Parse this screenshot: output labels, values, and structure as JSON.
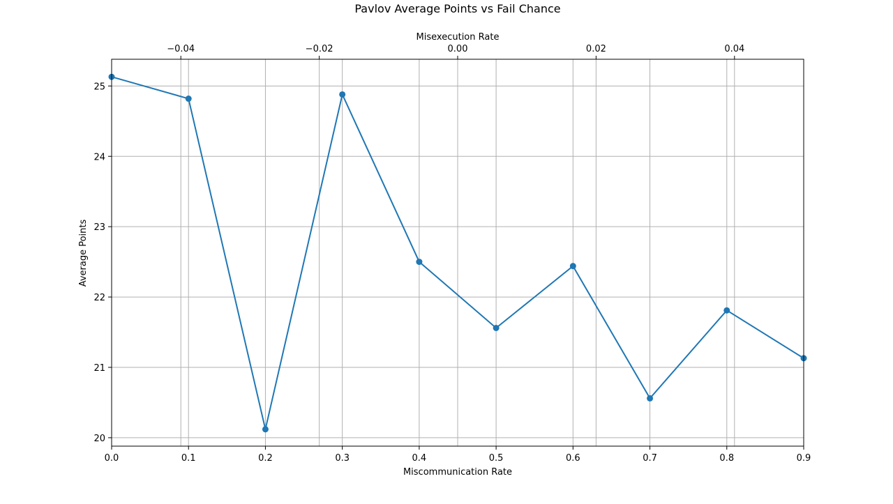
{
  "chart_data": {
    "type": "line",
    "title": "Pavlov Average Points vs Fail Chance",
    "xlabel": "Miscommunication Rate",
    "ylabel": "Average Points",
    "x2label": "Misexecution Rate",
    "xlim": [
      0,
      0.9
    ],
    "ylim": [
      19.88,
      25.38
    ],
    "x2lim": [
      -0.05,
      0.05
    ],
    "grid": true,
    "x_ticks": [
      "0.0",
      "0.1",
      "0.2",
      "0.3",
      "0.4",
      "0.5",
      "0.6",
      "0.7",
      "0.8",
      "0.9"
    ],
    "y_ticks": [
      "20",
      "21",
      "22",
      "23",
      "24",
      "25"
    ],
    "x2_ticks": [
      "−0.04",
      "−0.02",
      "0.00",
      "0.02",
      "0.04"
    ],
    "line_color": "#1f77b4",
    "series": [
      {
        "x": [
          0.0,
          0.1,
          0.2,
          0.3,
          0.4,
          0.5,
          0.6,
          0.7,
          0.8,
          0.9
        ],
        "values": [
          25.13,
          24.82,
          20.12,
          24.88,
          22.5,
          21.56,
          22.44,
          20.56,
          21.81,
          21.13
        ]
      }
    ]
  }
}
